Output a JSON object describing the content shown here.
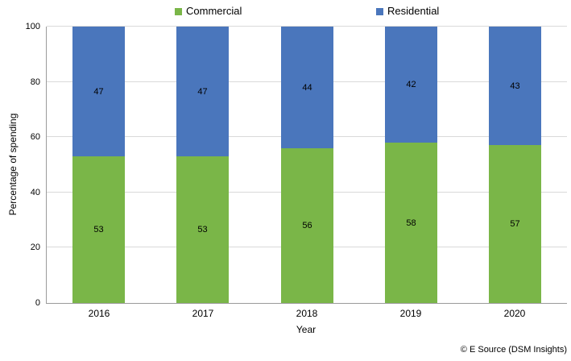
{
  "chart_data": {
    "type": "bar",
    "stacked": true,
    "categories": [
      "2016",
      "2017",
      "2018",
      "2019",
      "2020"
    ],
    "series": [
      {
        "name": "Commercial",
        "color": "#7AB648",
        "values": [
          53,
          53,
          56,
          58,
          57
        ]
      },
      {
        "name": "Residential",
        "color": "#4A76BC",
        "values": [
          47,
          47,
          44,
          42,
          43
        ]
      }
    ],
    "xlabel": "Year",
    "ylabel": "Percentage of spending",
    "ylim": [
      0,
      100
    ],
    "ytick_interval": 20,
    "ytick_labels": [
      "0",
      "20",
      "40",
      "60",
      "80",
      "100"
    ],
    "grid": "horizontal",
    "legend_position": "top",
    "data_labels": "center"
  },
  "footer": {
    "copyright": "© E Source (DSM Insights)"
  },
  "colors": {
    "gridline": "#d9d9d9",
    "axis": "#9b9b9b",
    "background": "#ffffff"
  }
}
